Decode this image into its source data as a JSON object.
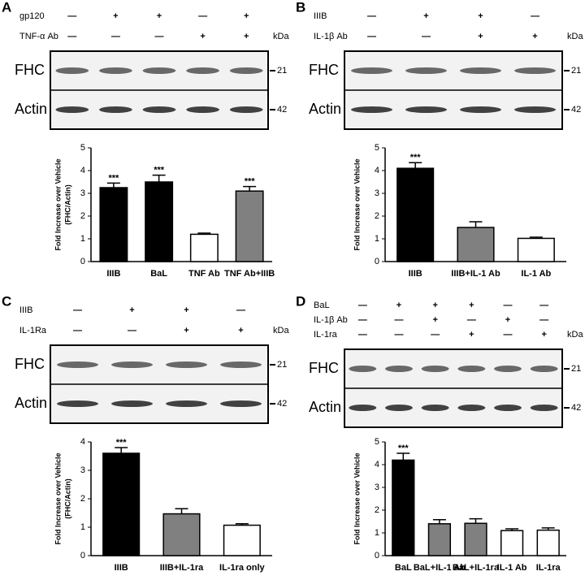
{
  "chart_data": [
    {
      "type": "bar",
      "panel": "A",
      "treatments": [
        {
          "label": "gp120",
          "marks": [
            "—",
            "+",
            "+",
            "—",
            "+"
          ]
        },
        {
          "label": "TNF-α Ab",
          "marks": [
            "—",
            "—",
            "—",
            "+",
            "+"
          ]
        }
      ],
      "unit": "kDa",
      "bands": [
        {
          "label": "FHC",
          "marker": "21"
        },
        {
          "label": "Actin",
          "marker": "42"
        }
      ],
      "ylabel": [
        "Fold  Increase over Vehicle",
        "(FHC/Actin)"
      ],
      "categories": [
        "IIIB",
        "BaL",
        "TNF Ab",
        "TNF Ab+IIIB"
      ],
      "values": [
        3.25,
        3.5,
        1.2,
        3.1
      ],
      "errors": [
        0.2,
        0.3,
        0.05,
        0.2
      ],
      "colors": [
        "#000000",
        "#000000",
        "#ffffff",
        "#808080"
      ],
      "annotations": [
        "***",
        "***",
        null,
        "***"
      ],
      "ylim": [
        0,
        5
      ],
      "yticks": [
        0,
        1,
        2,
        3,
        4,
        5
      ]
    },
    {
      "type": "bar",
      "panel": "B",
      "treatments": [
        {
          "label": "IIIB",
          "marks": [
            "—",
            "+",
            "+",
            "—"
          ]
        },
        {
          "label": "IL-1β Ab",
          "marks": [
            "—",
            "—",
            "+",
            "+"
          ]
        }
      ],
      "unit": "kDa",
      "bands": [
        {
          "label": "FHC",
          "marker": "21"
        },
        {
          "label": "Actin",
          "marker": "42"
        }
      ],
      "ylabel": [
        "Fold  Increase over Vehicle"
      ],
      "categories": [
        "IIIB",
        "IIIB+IL-1 Ab",
        "IL-1 Ab"
      ],
      "values": [
        4.1,
        1.5,
        1.02
      ],
      "errors": [
        0.25,
        0.25,
        0.05
      ],
      "colors": [
        "#000000",
        "#808080",
        "#ffffff"
      ],
      "annotations": [
        "***",
        null,
        null
      ],
      "ylim": [
        0,
        5
      ],
      "yticks": [
        0,
        1,
        2,
        3,
        4,
        5
      ]
    },
    {
      "type": "bar",
      "panel": "C",
      "treatments": [
        {
          "label": "IIIB",
          "marks": [
            "—",
            "+",
            "+",
            "—"
          ]
        },
        {
          "label": "IL-1Ra",
          "marks": [
            "—",
            "—",
            "+",
            "+"
          ]
        }
      ],
      "unit": "kDa",
      "bands": [
        {
          "label": "FHC",
          "marker": "21"
        },
        {
          "label": "Actin",
          "marker": "42"
        }
      ],
      "ylabel": [
        "Fold  Increase over Vehicle",
        "(FHC/Actin)"
      ],
      "categories": [
        "IIIB",
        "IIIB+IL-1ra",
        "IL-1ra only"
      ],
      "values": [
        3.6,
        1.47,
        1.07
      ],
      "errors": [
        0.2,
        0.18,
        0.05
      ],
      "colors": [
        "#000000",
        "#808080",
        "#ffffff"
      ],
      "annotations": [
        "***",
        null,
        null
      ],
      "ylim": [
        0,
        4
      ],
      "yticks": [
        0,
        1,
        2,
        3,
        4
      ]
    },
    {
      "type": "bar",
      "panel": "D",
      "treatments": [
        {
          "label": "BaL",
          "marks": [
            "—",
            "+",
            "+",
            "+",
            "—",
            "—"
          ]
        },
        {
          "label": "IL-1β Ab",
          "marks": [
            "—",
            "—",
            "+",
            "—",
            "+",
            "—"
          ]
        },
        {
          "label": "IL-1ra",
          "marks": [
            "—",
            "—",
            "—",
            "+",
            "—",
            "+"
          ]
        }
      ],
      "unit": "kDa",
      "bands": [
        {
          "label": "FHC",
          "marker": "21"
        },
        {
          "label": "Actin",
          "marker": "42"
        }
      ],
      "ylabel": [
        "Fold  Increase over Vehicle"
      ],
      "categories": [
        "BaL",
        "BaL+IL-1 Ab",
        "BaL+IL-1ra",
        "IL-1 Ab",
        "IL-1ra"
      ],
      "values": [
        4.2,
        1.4,
        1.42,
        1.1,
        1.12
      ],
      "errors": [
        0.3,
        0.18,
        0.2,
        0.08,
        0.1
      ],
      "colors": [
        "#000000",
        "#808080",
        "#808080",
        "#ffffff",
        "#ffffff"
      ],
      "annotations": [
        "***",
        null,
        null,
        null,
        null
      ],
      "ylim": [
        0,
        5
      ],
      "yticks": [
        0,
        1,
        2,
        3,
        4,
        5
      ]
    }
  ]
}
